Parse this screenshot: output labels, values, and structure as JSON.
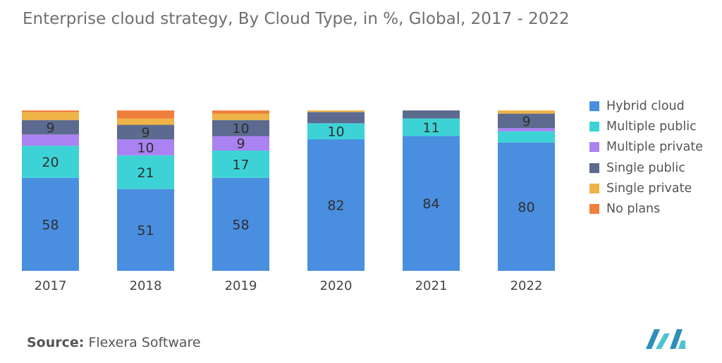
{
  "title": "Enterprise cloud strategy, By Cloud Type, in %, Global, 2017 - 2022",
  "source": {
    "label": "Source:",
    "text": "Flexera Software"
  },
  "logo": {
    "icon": "mordor-intelligence-logo-icon",
    "colors": [
      "#2e8fb8",
      "#4cc4d0"
    ]
  },
  "chart_data": {
    "type": "bar",
    "stacked": true,
    "title": "Enterprise cloud strategy, By Cloud Type, in %, Global, 2017 - 2022",
    "xlabel": "",
    "ylabel": "",
    "ylim": [
      0,
      100
    ],
    "grid": false,
    "legend_position": "right",
    "categories": [
      "2017",
      "2018",
      "2019",
      "2020",
      "2021",
      "2022"
    ],
    "series": [
      {
        "name": "Hybrid cloud",
        "color": "#4a8ee0",
        "values": [
          58,
          51,
          58,
          82,
          84,
          80
        ],
        "labels": [
          "58",
          "51",
          "58",
          "82",
          "84",
          "80"
        ]
      },
      {
        "name": "Multiple public",
        "color": "#3dd3d6",
        "values": [
          20,
          21,
          17,
          10,
          11,
          7
        ],
        "labels": [
          "20",
          "21",
          "17",
          "10",
          "11",
          ""
        ]
      },
      {
        "name": "Multiple private",
        "color": "#aa82f2",
        "values": [
          7,
          10,
          9,
          0,
          0,
          2
        ],
        "labels": [
          "",
          "10",
          "9",
          "",
          "",
          ""
        ]
      },
      {
        "name": "Single public",
        "color": "#5b6a8e",
        "values": [
          9,
          9,
          10,
          7,
          5,
          9
        ],
        "labels": [
          "9",
          "9",
          "10",
          "",
          "",
          "9"
        ]
      },
      {
        "name": "Single private",
        "color": "#eeb447",
        "values": [
          5,
          4,
          4,
          1,
          0,
          2
        ],
        "labels": [
          "",
          "",
          "",
          "",
          "",
          ""
        ]
      },
      {
        "name": "No plans",
        "color": "#f07e3c",
        "values": [
          1,
          5,
          2,
          0,
          0,
          0
        ],
        "labels": [
          "",
          "",
          "",
          "",
          "",
          ""
        ]
      }
    ]
  }
}
